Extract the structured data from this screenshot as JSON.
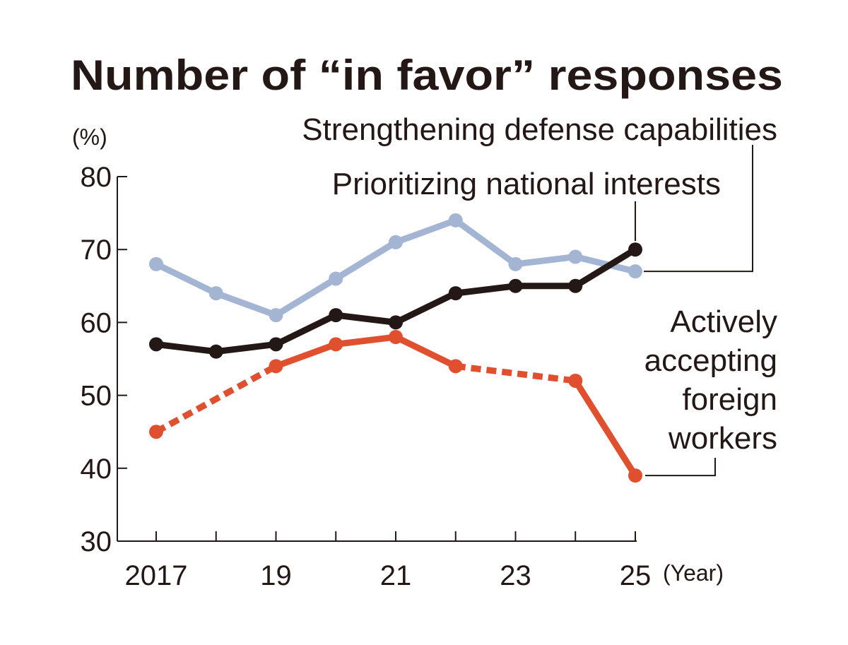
{
  "chart_data": {
    "type": "line",
    "title": "Number of “in favor” responses",
    "ylabel": "(%)",
    "xlabel": "(Year)",
    "ylim": [
      30,
      80
    ],
    "yticks": [
      30,
      40,
      50,
      60,
      70,
      80
    ],
    "x": [
      2017,
      2018,
      2019,
      2020,
      2021,
      2022,
      2023,
      2024,
      2025
    ],
    "xtick_labels": [
      "2017",
      "19",
      "21",
      "23",
      "25"
    ],
    "xtick_label_years": [
      2017,
      2019,
      2021,
      2023,
      2025
    ],
    "grid": false,
    "series": [
      {
        "name": "Strengthening defense capabilities",
        "color": "#a3b5d3",
        "values": [
          68,
          64,
          61,
          66,
          71,
          74,
          68,
          69,
          67
        ],
        "dashed_segments": []
      },
      {
        "name": "Prioritizing national interests",
        "color": "#231816",
        "values": [
          57,
          56,
          57,
          61,
          60,
          64,
          65,
          65,
          70
        ],
        "dashed_segments": []
      },
      {
        "name": "Actively accepting foreign workers",
        "color": "#e0502f",
        "values": [
          45,
          null,
          54,
          57,
          58,
          54,
          null,
          52,
          39
        ],
        "dashed_segments": [
          [
            2017,
            2019
          ],
          [
            2022,
            2024
          ]
        ]
      }
    ],
    "series_label_lines": [
      [
        "Strengthening defense capabilities"
      ],
      [
        "Prioritizing national interests"
      ],
      [
        "Actively",
        "accepting",
        "foreign",
        "workers"
      ]
    ]
  }
}
